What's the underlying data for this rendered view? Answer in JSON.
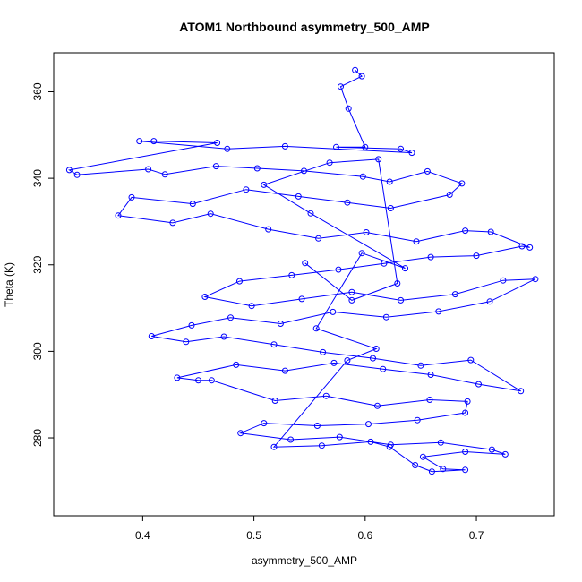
{
  "chart_data": {
    "type": "scatter",
    "title": "ATOM1 Northbound asymmetry_500_AMP",
    "xlabel": "asymmetry_500_AMP",
    "ylabel": "Theta (K)",
    "xlim": [
      0.32,
      0.77
    ],
    "ylim": [
      262,
      369
    ],
    "x_ticks": [
      0.4,
      0.5,
      0.6,
      0.7
    ],
    "y_ticks": [
      280,
      300,
      320,
      340,
      360
    ],
    "x_tick_labels": [
      "0.4",
      "0.5",
      "0.6",
      "0.7"
    ],
    "y_tick_labels": [
      "280",
      "300",
      "320",
      "340",
      "360"
    ],
    "point_style": "open-circle",
    "connected": true,
    "color": "#0000ff",
    "points": [
      [
        0.591,
        365.0
      ],
      [
        0.597,
        363.6
      ],
      [
        0.578,
        361.2
      ],
      [
        0.585,
        356.1
      ],
      [
        0.6,
        347.2
      ],
      [
        0.574,
        347.2
      ],
      [
        0.632,
        346.8
      ],
      [
        0.642,
        345.9
      ],
      [
        0.528,
        347.4
      ],
      [
        0.476,
        346.8
      ],
      [
        0.397,
        348.6
      ],
      [
        0.41,
        348.6
      ],
      [
        0.467,
        348.2
      ],
      [
        0.334,
        341.9
      ],
      [
        0.341,
        340.8
      ],
      [
        0.405,
        342.1
      ],
      [
        0.42,
        340.9
      ],
      [
        0.466,
        342.8
      ],
      [
        0.503,
        342.3
      ],
      [
        0.545,
        341.7
      ],
      [
        0.598,
        340.4
      ],
      [
        0.622,
        339.2
      ],
      [
        0.656,
        341.6
      ],
      [
        0.687,
        338.8
      ],
      [
        0.676,
        336.2
      ],
      [
        0.623,
        333.1
      ],
      [
        0.584,
        334.4
      ],
      [
        0.54,
        335.8
      ],
      [
        0.493,
        337.4
      ],
      [
        0.445,
        334.1
      ],
      [
        0.39,
        335.6
      ],
      [
        0.378,
        331.4
      ],
      [
        0.427,
        329.7
      ],
      [
        0.461,
        331.8
      ],
      [
        0.513,
        328.2
      ],
      [
        0.558,
        326.1
      ],
      [
        0.601,
        327.5
      ],
      [
        0.646,
        325.4
      ],
      [
        0.69,
        327.9
      ],
      [
        0.713,
        327.6
      ],
      [
        0.748,
        324.0
      ],
      [
        0.741,
        324.3
      ],
      [
        0.7,
        322.1
      ],
      [
        0.659,
        321.8
      ],
      [
        0.617,
        320.3
      ],
      [
        0.576,
        318.9
      ],
      [
        0.534,
        317.6
      ],
      [
        0.487,
        316.2
      ],
      [
        0.456,
        312.6
      ],
      [
        0.498,
        310.5
      ],
      [
        0.543,
        312.1
      ],
      [
        0.588,
        313.7
      ],
      [
        0.632,
        311.8
      ],
      [
        0.681,
        313.2
      ],
      [
        0.724,
        316.4
      ],
      [
        0.753,
        316.7
      ],
      [
        0.712,
        311.5
      ],
      [
        0.666,
        309.2
      ],
      [
        0.619,
        307.9
      ],
      [
        0.571,
        309.1
      ],
      [
        0.524,
        306.4
      ],
      [
        0.479,
        307.8
      ],
      [
        0.444,
        306.0
      ],
      [
        0.408,
        303.5
      ],
      [
        0.439,
        302.2
      ],
      [
        0.473,
        303.4
      ],
      [
        0.518,
        301.6
      ],
      [
        0.562,
        299.8
      ],
      [
        0.607,
        298.4
      ],
      [
        0.65,
        296.7
      ],
      [
        0.695,
        298.0
      ],
      [
        0.74,
        290.8
      ],
      [
        0.702,
        292.4
      ],
      [
        0.659,
        294.6
      ],
      [
        0.616,
        295.9
      ],
      [
        0.572,
        297.3
      ],
      [
        0.528,
        295.5
      ],
      [
        0.484,
        296.9
      ],
      [
        0.431,
        293.9
      ],
      [
        0.45,
        293.3
      ],
      [
        0.462,
        293.3
      ],
      [
        0.519,
        288.6
      ],
      [
        0.565,
        289.7
      ],
      [
        0.611,
        287.4
      ],
      [
        0.658,
        288.8
      ],
      [
        0.692,
        288.4
      ],
      [
        0.69,
        285.8
      ],
      [
        0.647,
        284.1
      ],
      [
        0.603,
        283.2
      ],
      [
        0.557,
        282.8
      ],
      [
        0.509,
        283.4
      ],
      [
        0.488,
        281.1
      ],
      [
        0.533,
        279.6
      ],
      [
        0.577,
        280.2
      ],
      [
        0.623,
        278.4
      ],
      [
        0.668,
        278.9
      ],
      [
        0.714,
        277.3
      ],
      [
        0.726,
        276.2
      ],
      [
        0.69,
        276.8
      ],
      [
        0.652,
        275.6
      ],
      [
        0.67,
        272.8
      ],
      [
        0.69,
        272.6
      ],
      [
        0.66,
        272.2
      ],
      [
        0.645,
        273.7
      ],
      [
        0.622,
        277.9
      ],
      [
        0.605,
        279.1
      ],
      [
        0.561,
        278.2
      ],
      [
        0.518,
        277.9
      ],
      [
        0.584,
        297.9
      ],
      [
        0.61,
        300.6
      ],
      [
        0.556,
        305.3
      ],
      [
        0.597,
        322.7
      ],
      [
        0.636,
        319.2
      ],
      [
        0.551,
        331.9
      ],
      [
        0.509,
        338.5
      ],
      [
        0.568,
        343.6
      ],
      [
        0.612,
        344.4
      ],
      [
        0.629,
        315.7
      ],
      [
        0.588,
        311.8
      ],
      [
        0.546,
        320.4
      ]
    ]
  }
}
